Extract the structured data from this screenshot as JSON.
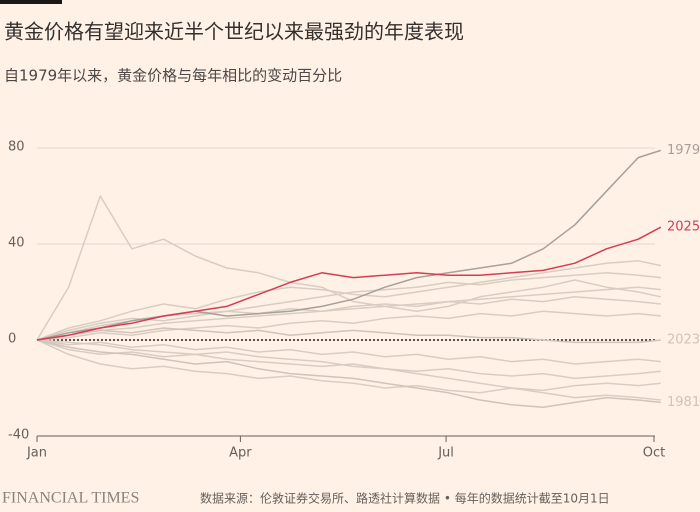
{
  "chart_data": {
    "type": "line",
    "title": "黄金价格有望迎来近半个世纪以来最强劲的年度表现",
    "subtitle": "自1979年以来，黄金价格与每年相比的变动百分比",
    "source": "数据来源：伦敦证券交易所、路透社计算数据 • 每年的数据统计截至10月1日",
    "brand": "FINANCIAL TIMES",
    "x": [
      0,
      14,
      28,
      42,
      56,
      70,
      84,
      98,
      112,
      126,
      140,
      154,
      168,
      182,
      196,
      210,
      224,
      238,
      252,
      266,
      276
    ],
    "xlim": [
      0,
      280
    ],
    "xticks": [
      {
        "value": 0,
        "label": "Jan"
      },
      {
        "value": 90,
        "label": "Apr"
      },
      {
        "value": 181,
        "label": "Jul"
      },
      {
        "value": 273,
        "label": "Oct"
      }
    ],
    "ylim": [
      -40,
      80
    ],
    "yticks": [
      80,
      40,
      0,
      -40
    ],
    "grid": true,
    "series": [
      {
        "color": "#d9cdc3",
        "values": [
          0,
          22,
          60,
          38,
          42,
          35,
          30,
          28,
          24,
          22,
          16,
          14,
          12,
          14,
          18,
          20,
          22,
          25,
          22,
          20,
          18
        ]
      },
      {
        "color": "#d9cdc3",
        "values": [
          0,
          5,
          8,
          12,
          15,
          13,
          17,
          20,
          22,
          21,
          19,
          18,
          20,
          22,
          24,
          26,
          28,
          30,
          32,
          33,
          31
        ]
      },
      {
        "color": "#d9cdc3",
        "values": [
          0,
          3,
          6,
          8,
          10,
          11,
          12,
          14,
          16,
          18,
          20,
          21,
          22,
          24,
          23,
          25,
          26,
          27,
          28,
          27,
          26
        ]
      },
      {
        "color": "#d9cdc3",
        "values": [
          0,
          2,
          4,
          5,
          7,
          8,
          9,
          10,
          11,
          12,
          13,
          14,
          15,
          16,
          17,
          18,
          19,
          20,
          21,
          22,
          21
        ]
      },
      {
        "color": "#d9cdc3",
        "values": [
          0,
          4,
          7,
          9,
          8,
          10,
          12,
          11,
          13,
          12,
          14,
          15,
          14,
          16,
          15,
          17,
          16,
          18,
          17,
          16,
          15
        ]
      },
      {
        "color": "#d9cdc3",
        "values": [
          0,
          1,
          3,
          2,
          4,
          5,
          6,
          5,
          7,
          8,
          7,
          9,
          10,
          9,
          11,
          10,
          12,
          11,
          10,
          11,
          10
        ]
      },
      {
        "color": "#d9cdc3",
        "values": [
          0,
          -2,
          -1,
          -3,
          -2,
          -4,
          -3,
          -5,
          -4,
          -6,
          -5,
          -7,
          -6,
          -8,
          -7,
          -9,
          -8,
          -10,
          -9,
          -8,
          -9
        ]
      },
      {
        "color": "#d9cdc3",
        "values": [
          0,
          -4,
          -6,
          -5,
          -7,
          -6,
          -8,
          -9,
          -10,
          -11,
          -10,
          -12,
          -13,
          -12,
          -14,
          -15,
          -14,
          -16,
          -15,
          -14,
          -13
        ]
      },
      {
        "color": "#d9cdc3",
        "values": [
          0,
          -6,
          -10,
          -12,
          -11,
          -13,
          -14,
          -16,
          -15,
          -17,
          -18,
          -20,
          -19,
          -21,
          -22,
          -20,
          -21,
          -19,
          -18,
          -19,
          -18
        ]
      },
      {
        "color": "#d9cdc3",
        "values": [
          0,
          -1,
          -2,
          -4,
          -5,
          -6,
          -5,
          -7,
          -8,
          -9,
          -11,
          -12,
          -14,
          -16,
          -18,
          -20,
          -22,
          -24,
          -23,
          -24,
          -25
        ]
      },
      {
        "name": "2023",
        "color": "#cfc4ba",
        "values": [
          0,
          2,
          4,
          3,
          5,
          4,
          3,
          4,
          2,
          3,
          4,
          3,
          2,
          2,
          1,
          1,
          0,
          -1,
          -1,
          -1,
          0
        ]
      },
      {
        "name": "1981",
        "color": "#cfc4ba",
        "values": [
          0,
          -3,
          -5,
          -6,
          -8,
          -10,
          -9,
          -12,
          -14,
          -15,
          -16,
          -18,
          -20,
          -22,
          -25,
          -27,
          -28,
          -26,
          -24,
          -25,
          -26
        ]
      },
      {
        "name": "1979",
        "color": "#a7a09a",
        "values": [
          0,
          3,
          5,
          8,
          10,
          12,
          10,
          11,
          12,
          14,
          17,
          22,
          26,
          28,
          30,
          32,
          38,
          48,
          62,
          76,
          79
        ]
      },
      {
        "name": "2025",
        "color": "#d63c52",
        "values": [
          0,
          2,
          5,
          7,
          10,
          12,
          14,
          19,
          24,
          28,
          26,
          27,
          28,
          27,
          27,
          28,
          29,
          32,
          38,
          42,
          47
        ]
      }
    ]
  }
}
